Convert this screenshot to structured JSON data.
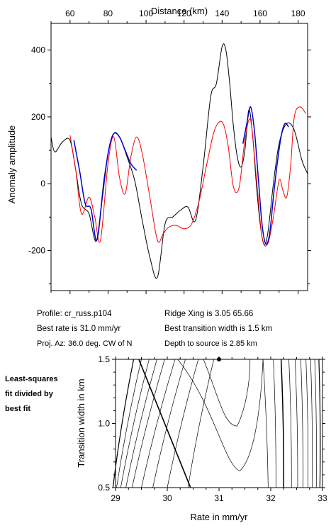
{
  "chart_data": [
    {
      "type": "line",
      "xlabel": "Distance (km)",
      "ylabel": "Anomaly amplitude",
      "xlim": [
        50,
        185
      ],
      "ylim": [
        -320,
        480
      ],
      "xticks": [
        60,
        80,
        100,
        120,
        140,
        160,
        180
      ],
      "yticks": [
        -200,
        0,
        200,
        400
      ],
      "series": [
        {
          "color": "#000000",
          "x": [
            48,
            52,
            56,
            60,
            63,
            66,
            70,
            74,
            78,
            82,
            86,
            90,
            94,
            98,
            102,
            106,
            110,
            114,
            118,
            122,
            126,
            130,
            134,
            137,
            140,
            142,
            144,
            146,
            148,
            150,
            152,
            154,
            156,
            158,
            160,
            162,
            164,
            167,
            170,
            174,
            178,
            182,
            185
          ],
          "values": [
            140,
            95,
            125,
            130,
            40,
            -60,
            -90,
            -170,
            20,
            140,
            140,
            80,
            10,
            -110,
            -220,
            -280,
            -120,
            -100,
            -80,
            -70,
            -110,
            50,
            260,
            300,
            410,
            400,
            300,
            170,
            80,
            50,
            100,
            220,
            150,
            0,
            -120,
            -180,
            -150,
            0,
            120,
            180,
            160,
            70,
            30
          ]
        },
        {
          "color": "#ff0000",
          "x": [
            60,
            63,
            66,
            70,
            73,
            76,
            80,
            83,
            86,
            89,
            92,
            95,
            98,
            102,
            106,
            109,
            112,
            116,
            120,
            124,
            128,
            132,
            136,
            140,
            143,
            146,
            149,
            152,
            155,
            158,
            161,
            164,
            167,
            170,
            172,
            174,
            176,
            178,
            181,
            184
          ],
          "values": [
            145,
            40,
            -90,
            -40,
            -100,
            -170,
            60,
            140,
            20,
            -30,
            80,
            140,
            90,
            -40,
            -170,
            -150,
            -130,
            -125,
            -135,
            -120,
            -50,
            60,
            160,
            185,
            120,
            -10,
            -10,
            130,
            190,
            20,
            -160,
            -180,
            -100,
            10,
            -20,
            -40,
            50,
            200,
            230,
            210
          ]
        },
        {
          "color": "#0000cc",
          "x": [
            62,
            65,
            68,
            71,
            74,
            77,
            80,
            83,
            86,
            89,
            92,
            95
          ],
          "values": [
            130,
            40,
            -60,
            -75,
            -170,
            -40,
            90,
            150,
            140,
            100,
            60,
            40
          ]
        },
        {
          "color": "#0000cc",
          "x": [
            151,
            153,
            155,
            157,
            159,
            161,
            163,
            165,
            167,
            169,
            171,
            173,
            175
          ],
          "values": [
            120,
            180,
            230,
            160,
            20,
            -120,
            -180,
            -150,
            -40,
            60,
            140,
            180,
            170
          ]
        }
      ]
    },
    {
      "type": "contour",
      "xlabel": "Rate in mm/yr",
      "ylabel": "Transition width in km",
      "xlim": [
        29,
        33
      ],
      "ylim": [
        0.5,
        1.5
      ],
      "xticks": [
        29,
        30,
        31,
        32,
        33
      ],
      "yticks": [
        0.5,
        1.0,
        1.5
      ],
      "best_fit": {
        "x": 31.0,
        "y": 1.5
      }
    }
  ],
  "info": {
    "profile": "Profile: cr_russ.p104",
    "ridge": "Ridge Xing is 3.05 65.66",
    "best_rate": "Best rate is 31.0 mm/yr",
    "transition": "Best transition width is 1.5 km",
    "proj": "Proj. Az: 36.0 deg. CW of N",
    "depth": "Depth to source is   2.85 km"
  },
  "side_note": "Least-squares\nfit divided by\nbest fit"
}
